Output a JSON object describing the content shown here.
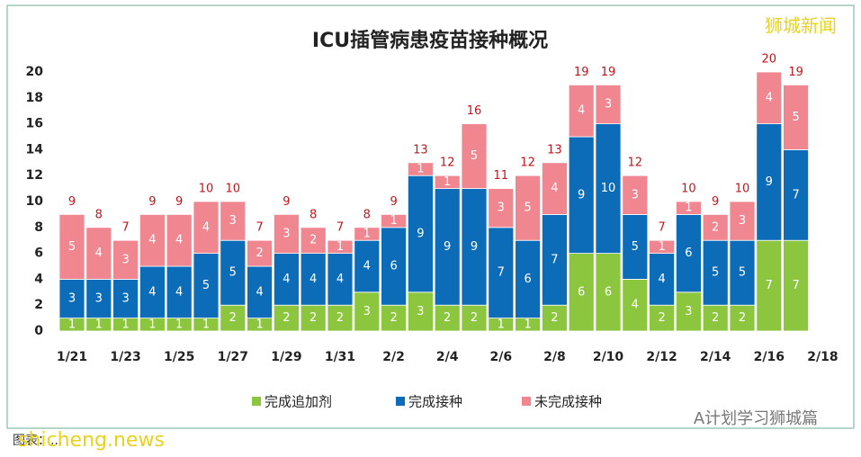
{
  "chart_data": {
    "type": "stacked-bar",
    "title": "ICU插管病患疫苗接种概况",
    "categories": [
      "1/21",
      null,
      "1/23",
      null,
      "1/25",
      null,
      "1/27",
      null,
      "1/29",
      null,
      "1/31",
      null,
      "2/2",
      null,
      "2/4",
      null,
      "2/6",
      null,
      "2/8",
      null,
      "2/10",
      null,
      "2/12",
      null,
      "2/14",
      null,
      "2/16",
      null,
      "2/18"
    ],
    "series": [
      {
        "name": "完成追加剂",
        "color": "#8cc63e",
        "values": [
          1,
          1,
          1,
          1,
          1,
          1,
          2,
          1,
          2,
          2,
          2,
          3,
          2,
          3,
          2,
          2,
          1,
          1,
          2,
          6,
          6,
          4,
          2,
          3,
          2,
          2,
          7,
          7,
          null
        ]
      },
      {
        "name": "完成接种",
        "color": "#0d6cb8",
        "values": [
          3,
          3,
          3,
          4,
          4,
          5,
          5,
          4,
          4,
          4,
          4,
          4,
          6,
          9,
          9,
          9,
          7,
          6,
          7,
          9,
          10,
          5,
          4,
          6,
          5,
          5,
          9,
          7,
          null
        ]
      },
      {
        "name": "未完成接种",
        "color": "#f0868f",
        "values": [
          5,
          4,
          3,
          4,
          4,
          4,
          3,
          2,
          3,
          2,
          1,
          1,
          1,
          1,
          1,
          5,
          3,
          5,
          4,
          4,
          3,
          3,
          1,
          1,
          2,
          3,
          4,
          5,
          null
        ]
      }
    ],
    "totals": [
      9,
      8,
      7,
      9,
      9,
      10,
      10,
      7,
      9,
      8,
      7,
      8,
      9,
      13,
      12,
      16,
      11,
      12,
      13,
      19,
      19,
      12,
      7,
      10,
      9,
      10,
      20,
      19,
      null
    ],
    "ylim": [
      0,
      20
    ],
    "yticks": [
      0,
      2,
      4,
      6,
      8,
      10,
      12,
      14,
      16,
      18,
      20
    ],
    "grid": false,
    "legend": "bottom"
  },
  "watermarks": {
    "top_right": "狮城新闻",
    "bottom_right": "A计划学习狮城篇",
    "bottom_left": "shicheng.news",
    "source": "图表：..."
  }
}
